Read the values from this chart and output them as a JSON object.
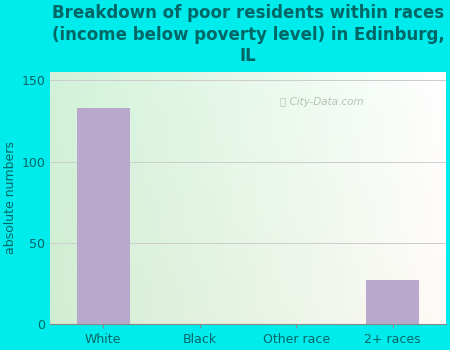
{
  "categories": [
    "White",
    "Black",
    "Other race",
    "2+ races"
  ],
  "values": [
    133,
    0,
    0,
    27
  ],
  "bar_color": "#b8a8cc",
  "title": "Breakdown of poor residents within races\n(income below poverty level) in Edinburg,\nIL",
  "ylabel": "absolute numbers",
  "ylim": [
    0,
    155
  ],
  "yticks": [
    0,
    50,
    100,
    150
  ],
  "outer_bg": "#00ebeb",
  "plot_bg_topleft": "#d8efd8",
  "plot_bg_topright": "#f0fff0",
  "plot_bg_bottomleft": "#c8e8c8",
  "plot_bg_bottomright": "#e8f8e0",
  "grid_color": "#cccccc",
  "watermark": "City-Data.com",
  "title_fontsize": 12,
  "title_color": "#006666",
  "ylabel_fontsize": 9,
  "tick_fontsize": 9,
  "tick_color": "#006666",
  "label_color": "#006666"
}
